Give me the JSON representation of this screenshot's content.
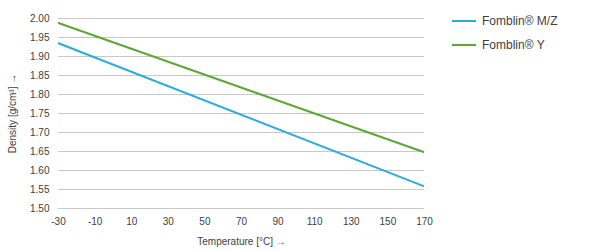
{
  "chart_data": {
    "type": "line",
    "title": "",
    "xlabel": "Temperature [°C]",
    "ylabel": "Density [g/cm³]",
    "xlim": [
      -30,
      170
    ],
    "xticks": [
      -30,
      -10,
      10,
      30,
      50,
      70,
      90,
      110,
      130,
      150,
      170
    ],
    "ylim": [
      1.5,
      2.0
    ],
    "yticks": [
      {
        "value": 1.5,
        "label": "1.50"
      },
      {
        "value": 1.55,
        "label": "1.55"
      },
      {
        "value": 1.6,
        "label": "1.60"
      },
      {
        "value": 1.65,
        "label": "1.65"
      },
      {
        "value": 1.7,
        "label": "1.70"
      },
      {
        "value": 1.75,
        "label": "1.75"
      },
      {
        "value": 1.8,
        "label": "1.80"
      },
      {
        "value": 1.85,
        "label": "1.85"
      },
      {
        "value": 1.9,
        "label": "1.90"
      },
      {
        "value": 1.95,
        "label": "1.95"
      },
      {
        "value": 2.0,
        "label": "2.00"
      }
    ],
    "grid": true,
    "legend": "right",
    "series": [
      {
        "name": "Fomblin® M/Z",
        "color": "#29ABE2",
        "x": [
          -30,
          170
        ],
        "values": [
          1.935,
          1.558
        ]
      },
      {
        "name": "Fomblin® Y",
        "color": "#5CA832",
        "x": [
          -30,
          170
        ],
        "values": [
          1.988,
          1.648
        ]
      }
    ]
  }
}
